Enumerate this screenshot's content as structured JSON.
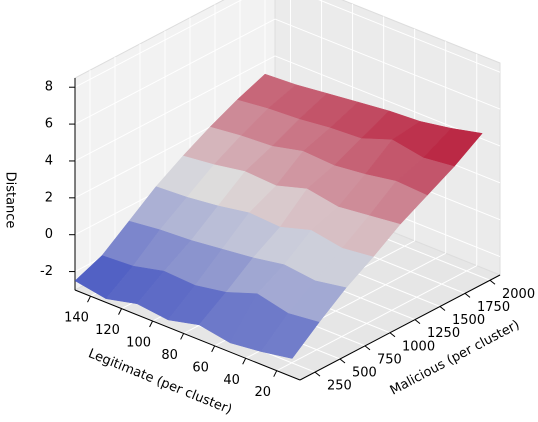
{
  "chart_data": {
    "type": "surface3d",
    "xlabel": "Legitimate (per cluster)",
    "ylabel": "Malicious (per cluster)",
    "zlabel": "Distance",
    "x": [
      10,
      30,
      50,
      70,
      90,
      110,
      130,
      150
    ],
    "y": [
      100,
      370,
      640,
      910,
      1180,
      1450,
      1720,
      2000
    ],
    "z": [
      [
        -2.0,
        -0.8,
        0.3,
        1.2,
        2.2,
        3.0,
        3.8,
        4.8
      ],
      [
        -2.3,
        -1.0,
        0.0,
        1.0,
        2.0,
        3.1,
        3.6,
        4.4
      ],
      [
        -2.5,
        -0.6,
        0.2,
        1.3,
        1.8,
        2.8,
        3.9,
        4.1
      ],
      [
        -2.2,
        -1.2,
        -0.1,
        0.8,
        2.1,
        2.6,
        3.3,
        4.0
      ],
      [
        -2.6,
        -1.5,
        -0.3,
        0.9,
        1.6,
        2.7,
        3.2,
        3.8
      ],
      [
        -2.4,
        -1.4,
        -0.5,
        0.6,
        1.7,
        2.3,
        3.0,
        3.6
      ],
      [
        -2.8,
        -1.8,
        -0.6,
        0.4,
        1.4,
        2.2,
        2.9,
        3.4
      ],
      [
        -2.5,
        -1.9,
        -0.8,
        0.3,
        1.2,
        2.0,
        2.7,
        3.3
      ]
    ],
    "xlim": [
      5,
      150
    ],
    "ylim": [
      100,
      2100
    ],
    "zlim": [
      -3,
      8.5
    ],
    "xticks": [
      20,
      40,
      60,
      80,
      100,
      120,
      140
    ],
    "yticks": [
      250,
      500,
      750,
      1000,
      1250,
      1500,
      1750,
      2000
    ],
    "zticks": [
      -2,
      0,
      2,
      4,
      6,
      8
    ],
    "colormap": "coolwarm",
    "grid": true
  }
}
